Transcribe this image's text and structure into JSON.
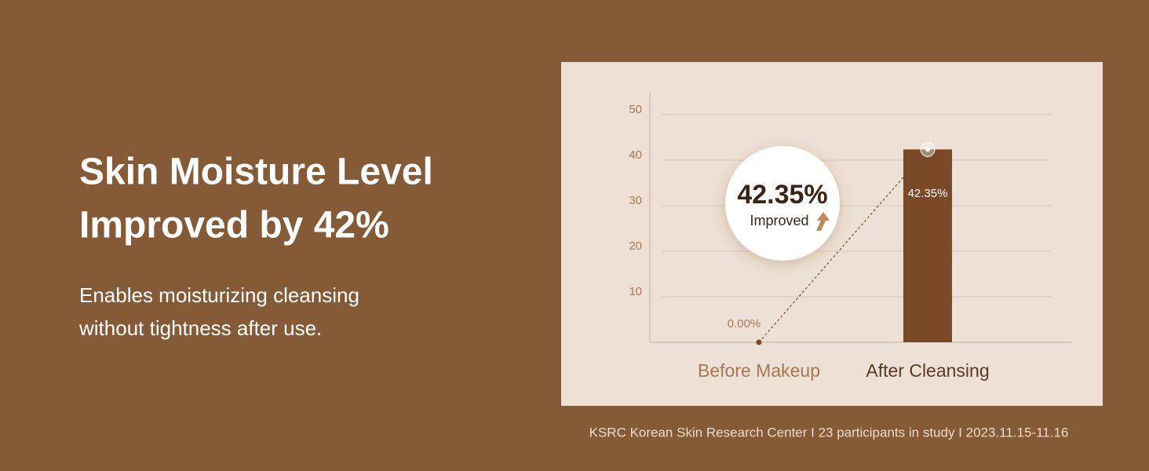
{
  "headline": [
    "Skin Moisture Level",
    "Improved by 42%"
  ],
  "description": [
    "Enables moisturizing cleansing",
    "without tightness after use."
  ],
  "footnote": "KSRC Korean Skin Research Center I 23 participants in study I 2023.11.15-11.16",
  "chart_data": {
    "type": "bar",
    "categories": [
      "Before Makeup",
      "After Cleansing"
    ],
    "category_colors": [
      "#a87752",
      "#5a3a22"
    ],
    "values": [
      0,
      42.35
    ],
    "value_labels": [
      "0.00%",
      "42.35%"
    ],
    "color": "#7a4a28",
    "ylim": [
      0,
      55
    ],
    "yticks": [
      10,
      20,
      30,
      40,
      50
    ],
    "grid": true,
    "badge_value": "42.35%",
    "badge_label": "Improved"
  }
}
